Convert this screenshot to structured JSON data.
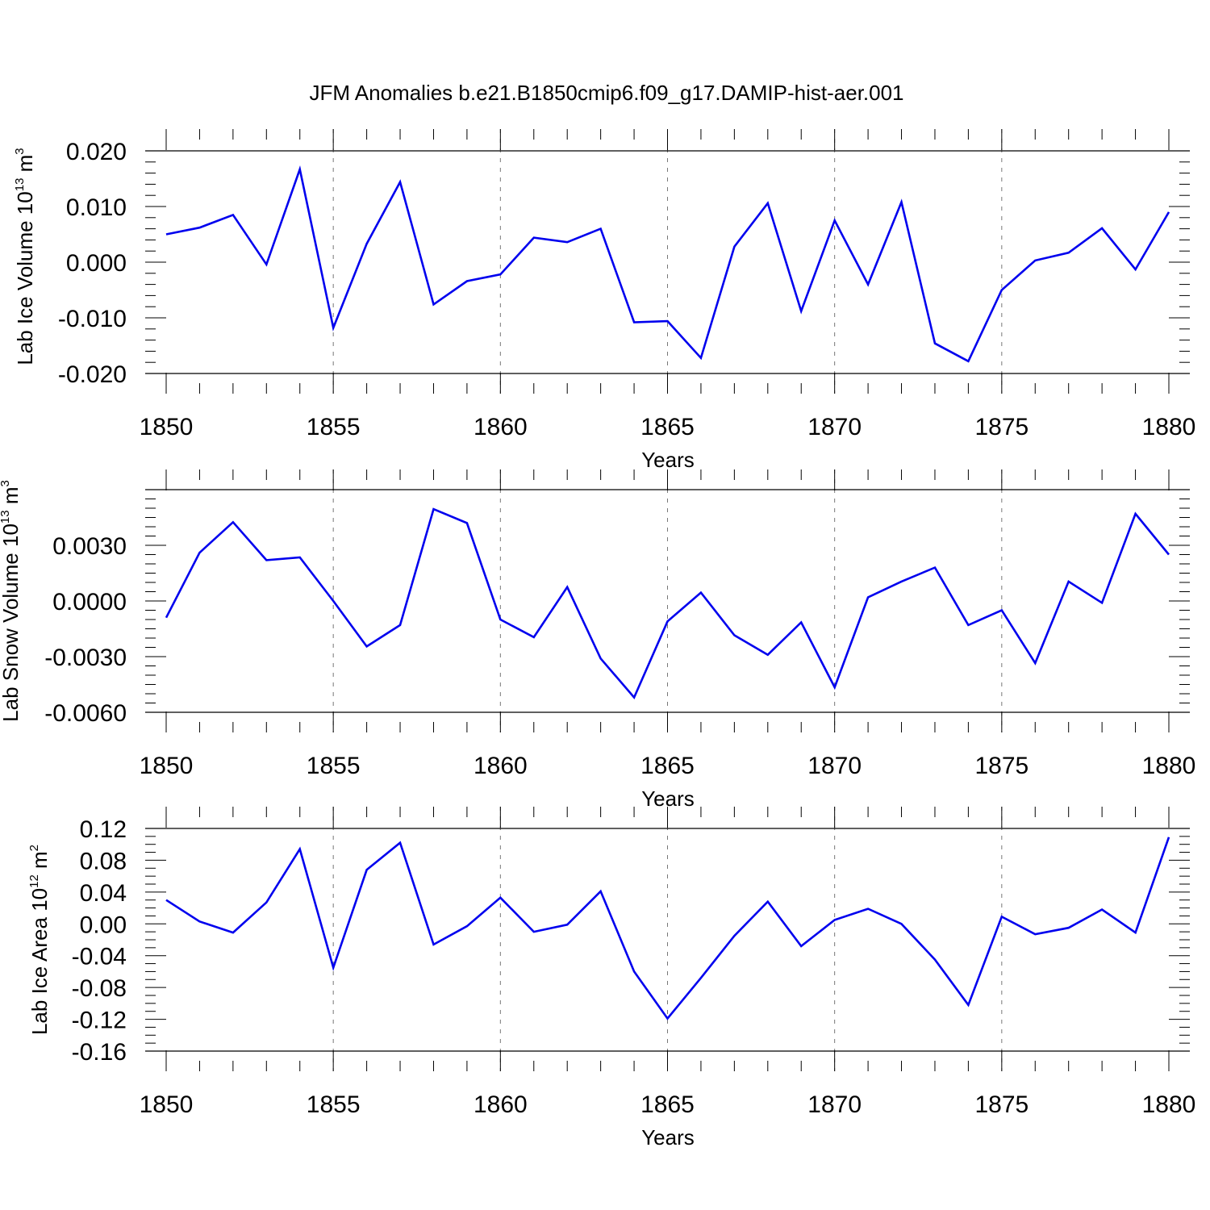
{
  "figure_title": "JFM Anomalies b.e21.B1850cmip6.f09_g17.DAMIP-hist-aer.001",
  "colors": {
    "series": "#0000ee",
    "axes": "#000000",
    "grid": "#777777"
  },
  "chart_data": [
    {
      "type": "line",
      "ylabel": {
        "text": "Lab Ice Volume 10",
        "exponent": "13",
        "unit": " m",
        "unit_exponent": "3"
      },
      "xlabel": "Years",
      "xlim": [
        1850,
        1880
      ],
      "ylim": [
        -0.02,
        0.02
      ],
      "x_ticks": [
        1850,
        1855,
        1860,
        1865,
        1870,
        1875,
        1880
      ],
      "x_tick_labels": [
        "1850",
        "1855",
        "1860",
        "1865",
        "1870",
        "1875",
        "1880"
      ],
      "y_ticks": [
        -0.02,
        -0.01,
        0.0,
        0.01,
        0.02
      ],
      "y_tick_labels": [
        "-0.020",
        "-0.010",
        "0.000",
        "0.010",
        "0.020"
      ],
      "y_minor_step": 0.002,
      "grid": "vertical dashed at major x ticks",
      "series": [
        {
          "name": "Lab Ice Volume",
          "x": [
            1850,
            1851,
            1852,
            1853,
            1854,
            1855,
            1856,
            1857,
            1858,
            1859,
            1860,
            1861,
            1862,
            1863,
            1864,
            1865,
            1866,
            1867,
            1868,
            1869,
            1870,
            1871,
            1872,
            1873,
            1874,
            1875,
            1876,
            1877,
            1878,
            1879,
            1880
          ],
          "values": [
            0.005,
            0.0062,
            0.0085,
            -0.0004,
            0.0167,
            -0.0118,
            0.0033,
            0.0144,
            -0.0076,
            -0.0034,
            -0.0022,
            0.0044,
            0.0036,
            0.006,
            -0.0108,
            -0.0106,
            -0.0172,
            0.0028,
            0.0106,
            -0.0088,
            0.0075,
            -0.004,
            0.0108,
            -0.0146,
            -0.0178,
            -0.005,
            0.0003,
            0.0017,
            0.0061,
            -0.0013,
            0.009
          ]
        }
      ]
    },
    {
      "type": "line",
      "ylabel": {
        "text": "Lab Snow Volume 10",
        "exponent": "13",
        "unit": " m",
        "unit_exponent": "3"
      },
      "xlabel": "Years",
      "xlim": [
        1850,
        1880
      ],
      "ylim": [
        -0.006,
        0.006
      ],
      "x_ticks": [
        1850,
        1855,
        1860,
        1865,
        1870,
        1875,
        1880
      ],
      "x_tick_labels": [
        "1850",
        "1855",
        "1860",
        "1865",
        "1870",
        "1875",
        "1880"
      ],
      "y_ticks": [
        -0.006,
        -0.003,
        0.0,
        0.003
      ],
      "y_tick_labels": [
        "-0.0060",
        "-0.0030",
        "0.0000",
        "0.0030"
      ],
      "y_minor_step": 0.0005,
      "grid": "vertical dashed at major x ticks",
      "series": [
        {
          "name": "Lab Snow Volume",
          "x": [
            1850,
            1851,
            1852,
            1853,
            1854,
            1855,
            1856,
            1857,
            1858,
            1859,
            1860,
            1861,
            1862,
            1863,
            1864,
            1865,
            1866,
            1867,
            1868,
            1869,
            1870,
            1871,
            1872,
            1873,
            1874,
            1875,
            1876,
            1877,
            1878,
            1879,
            1880
          ],
          "values": [
            -0.0009,
            0.0026,
            0.00425,
            0.0022,
            0.00235,
            0.0,
            -0.00245,
            -0.0013,
            0.00495,
            0.0042,
            -0.001,
            -0.00195,
            0.00075,
            -0.0031,
            -0.0052,
            -0.0011,
            0.00045,
            -0.00185,
            -0.0029,
            -0.00115,
            -0.00465,
            0.0002,
            0.00105,
            0.0018,
            -0.0013,
            -0.0005,
            -0.00335,
            0.00105,
            -0.0001,
            0.0047,
            0.0025
          ]
        }
      ]
    },
    {
      "type": "line",
      "ylabel": {
        "text": "Lab Ice Area 10",
        "exponent": "12",
        "unit": " m",
        "unit_exponent": "2"
      },
      "xlabel": "Years",
      "xlim": [
        1850,
        1880
      ],
      "ylim": [
        -0.16,
        0.12
      ],
      "x_ticks": [
        1850,
        1855,
        1860,
        1865,
        1870,
        1875,
        1880
      ],
      "x_tick_labels": [
        "1850",
        "1855",
        "1860",
        "1865",
        "1870",
        "1875",
        "1880"
      ],
      "y_ticks": [
        -0.16,
        -0.12,
        -0.08,
        -0.04,
        0.0,
        0.04,
        0.08,
        0.12
      ],
      "y_tick_labels": [
        "-0.16",
        "-0.12",
        "-0.08",
        "-0.04",
        "0.00",
        "0.04",
        "0.08",
        "0.12"
      ],
      "y_minor_step": 0.01,
      "grid": "vertical dashed at major x ticks",
      "series": [
        {
          "name": "Lab Ice Area",
          "x": [
            1850,
            1851,
            1852,
            1853,
            1854,
            1855,
            1856,
            1857,
            1858,
            1859,
            1860,
            1861,
            1862,
            1863,
            1864,
            1865,
            1866,
            1867,
            1868,
            1869,
            1870,
            1871,
            1872,
            1873,
            1874,
            1875,
            1876,
            1877,
            1878,
            1879,
            1880
          ],
          "values": [
            0.03,
            0.003,
            -0.011,
            0.027,
            0.094,
            -0.055,
            0.068,
            0.102,
            -0.026,
            -0.003,
            0.033,
            -0.01,
            -0.001,
            0.041,
            -0.06,
            -0.119,
            -0.068,
            -0.015,
            0.028,
            -0.028,
            0.005,
            0.019,
            -0.0,
            -0.045,
            -0.102,
            0.009,
            -0.013,
            -0.005,
            0.018,
            -0.011,
            0.109
          ]
        }
      ]
    }
  ]
}
